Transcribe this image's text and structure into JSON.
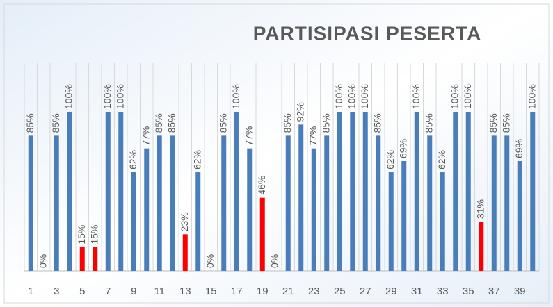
{
  "chart_data": {
    "type": "bar",
    "title": "PARTISIPASI PESERTA",
    "categories": [
      "1",
      null,
      "3",
      null,
      "5",
      null,
      "7",
      null,
      "9",
      null,
      "11",
      null,
      "13",
      null,
      "15",
      null,
      "17",
      null,
      "19",
      null,
      "21",
      null,
      "23",
      null,
      "25",
      null,
      "27",
      null,
      "29",
      null,
      "31",
      null,
      "33",
      null,
      "35",
      null,
      "37",
      null,
      "39",
      null
    ],
    "values": [
      85,
      0,
      85,
      100,
      15,
      15,
      100,
      100,
      62,
      77,
      85,
      85,
      23,
      62,
      0,
      85,
      100,
      77,
      46,
      0,
      85,
      92,
      77,
      85,
      100,
      100,
      100,
      85,
      62,
      69,
      100,
      85,
      62,
      100,
      100,
      31,
      85,
      85,
      69,
      100
    ],
    "value_labels": [
      "85%",
      "0%",
      "85%",
      "100%",
      "15%",
      "15%",
      "100%",
      "100%",
      "62%",
      "77%",
      "85%",
      "85%",
      "23%",
      "62%",
      "0%",
      "85%",
      "100%",
      "77%",
      "46%",
      "0%",
      "85%",
      "92%",
      "77%",
      "85%",
      "100%",
      "100%",
      "100%",
      "85%",
      "62%",
      "69%",
      "100%",
      "85%",
      "62%",
      "100%",
      "100%",
      "31%",
      "85%",
      "85%",
      "69%",
      "100%"
    ],
    "colors": [
      "#4a7ebb",
      "#4a7ebb",
      "#4a7ebb",
      "#4a7ebb",
      "#ff0000",
      "#ff0000",
      "#4a7ebb",
      "#4a7ebb",
      "#4a7ebb",
      "#4a7ebb",
      "#4a7ebb",
      "#4a7ebb",
      "#ff0000",
      "#4a7ebb",
      "#4a7ebb",
      "#4a7ebb",
      "#4a7ebb",
      "#4a7ebb",
      "#ff0000",
      "#4a7ebb",
      "#4a7ebb",
      "#4a7ebb",
      "#4a7ebb",
      "#4a7ebb",
      "#4a7ebb",
      "#4a7ebb",
      "#4a7ebb",
      "#4a7ebb",
      "#4a7ebb",
      "#4a7ebb",
      "#4a7ebb",
      "#4a7ebb",
      "#4a7ebb",
      "#4a7ebb",
      "#4a7ebb",
      "#ff0000",
      "#4a7ebb",
      "#4a7ebb",
      "#4a7ebb",
      "#4a7ebb"
    ],
    "ylim": [
      0,
      100
    ]
  }
}
